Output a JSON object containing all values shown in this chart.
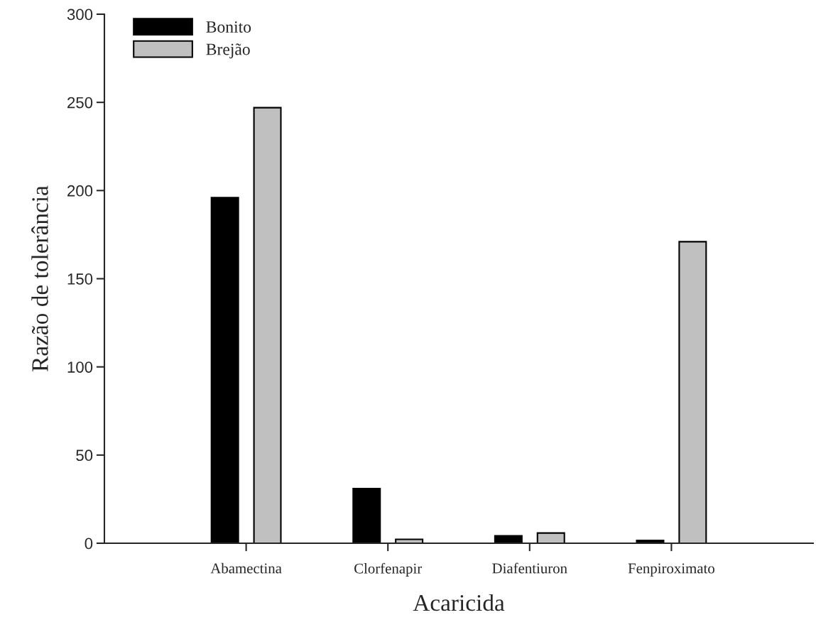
{
  "chart_data": {
    "type": "bar",
    "xlabel": "Acaricida",
    "ylabel": "Razão de tolerância",
    "categories": [
      "Abamectina",
      "Clorfenapir",
      "Diafentiuron",
      "Fenpiroximato"
    ],
    "series": [
      {
        "name": "Bonito",
        "color": "#000000",
        "values": [
          196,
          31,
          4.2,
          1.6
        ]
      },
      {
        "name": "Brejão",
        "color": "#c0c0c0",
        "values": [
          247,
          2.2,
          5.8,
          171
        ]
      }
    ],
    "ylim": [
      0,
      300
    ],
    "yticks": [
      0,
      50,
      100,
      150,
      200,
      250,
      300
    ],
    "grid": false,
    "legend": "top left"
  }
}
